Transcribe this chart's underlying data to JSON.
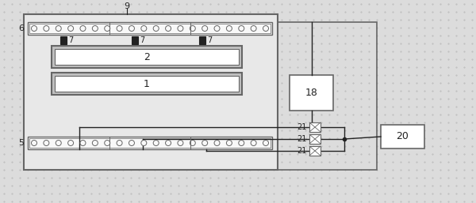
{
  "bg_color": "#dcdcdc",
  "line_color": "#666666",
  "dark_color": "#222222",
  "fig_width": 6.0,
  "fig_height": 2.57,
  "dpi": 100,
  "labels": {
    "9": "9",
    "6": "6",
    "5": "5",
    "2": "2",
    "1": "1",
    "7": "7",
    "18": "18",
    "20": "20",
    "21": "21"
  }
}
